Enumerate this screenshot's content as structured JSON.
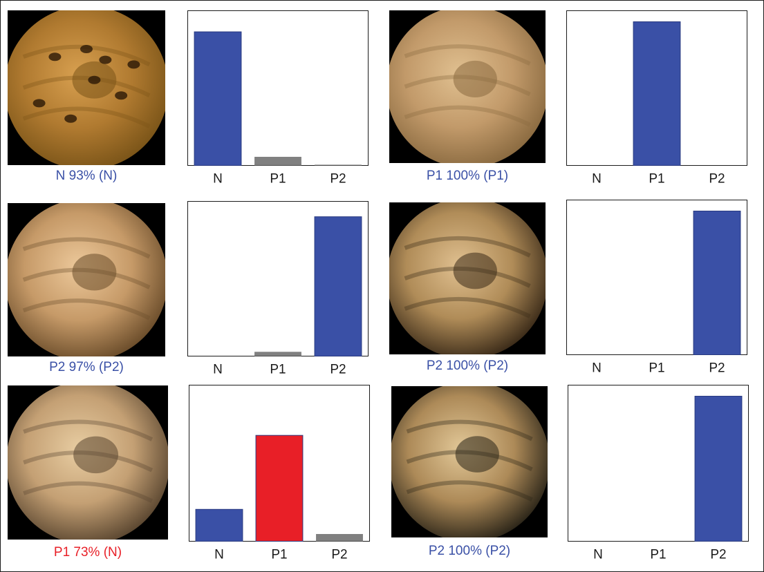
{
  "colors": {
    "predicted_bar": "#3a50a6",
    "misclassified_bar": "#e81f27",
    "other_bar": "#808080",
    "caption_correct": "#3a50a6",
    "caption_incorrect": "#e81f27"
  },
  "panels": [
    {
      "caption": "N 93% (N)",
      "caption_status": "correct",
      "image_icon": "endoscopy-image-icon"
    },
    {
      "caption": "P1 100% (P1)",
      "caption_status": "correct",
      "image_icon": "endoscopy-image-icon"
    },
    {
      "caption": "P2 97% (P2)",
      "caption_status": "correct",
      "image_icon": "endoscopy-image-icon"
    },
    {
      "caption": "P2 100% (P2)",
      "caption_status": "correct",
      "image_icon": "endoscopy-image-icon"
    },
    {
      "caption": "P1 73% (N)",
      "caption_status": "incorrect",
      "image_icon": "endoscopy-image-icon"
    },
    {
      "caption": "P2 100% (P2)",
      "caption_status": "correct",
      "image_icon": "endoscopy-image-icon"
    }
  ],
  "chart_data": [
    {
      "type": "bar",
      "categories": [
        "N",
        "P1",
        "P2"
      ],
      "values": [
        0.93,
        0.06,
        0.005
      ],
      "bar_colors": [
        "#3a50a6",
        "#808080",
        "#808080"
      ],
      "ylim": [
        0,
        1
      ],
      "grid": false,
      "xlabel": "",
      "ylabel": ""
    },
    {
      "type": "bar",
      "categories": [
        "N",
        "P1",
        "P2"
      ],
      "values": [
        0.0,
        1.0,
        0.0
      ],
      "bar_colors": [
        "#808080",
        "#3a50a6",
        "#808080"
      ],
      "ylim": [
        0,
        1
      ],
      "grid": false,
      "xlabel": "",
      "ylabel": ""
    },
    {
      "type": "bar",
      "categories": [
        "N",
        "P1",
        "P2"
      ],
      "values": [
        0.0,
        0.03,
        0.97
      ],
      "bar_colors": [
        "#808080",
        "#808080",
        "#3a50a6"
      ],
      "ylim": [
        0,
        1
      ],
      "grid": false,
      "xlabel": "",
      "ylabel": ""
    },
    {
      "type": "bar",
      "categories": [
        "N",
        "P1",
        "P2"
      ],
      "values": [
        0.0,
        0.0,
        1.0
      ],
      "bar_colors": [
        "#808080",
        "#808080",
        "#3a50a6"
      ],
      "ylim": [
        0,
        1
      ],
      "grid": false,
      "xlabel": "",
      "ylabel": ""
    },
    {
      "type": "bar",
      "categories": [
        "N",
        "P1",
        "P2"
      ],
      "values": [
        0.22,
        0.73,
        0.05
      ],
      "bar_colors": [
        "#3a50a6",
        "#e81f27",
        "#808080"
      ],
      "ylim": [
        0,
        1
      ],
      "grid": false,
      "xlabel": "",
      "ylabel": ""
    },
    {
      "type": "bar",
      "categories": [
        "N",
        "P1",
        "P2"
      ],
      "values": [
        0.0,
        0.0,
        1.0
      ],
      "bar_colors": [
        "#808080",
        "#808080",
        "#3a50a6"
      ],
      "ylim": [
        0,
        1
      ],
      "grid": false,
      "xlabel": "",
      "ylabel": ""
    }
  ]
}
